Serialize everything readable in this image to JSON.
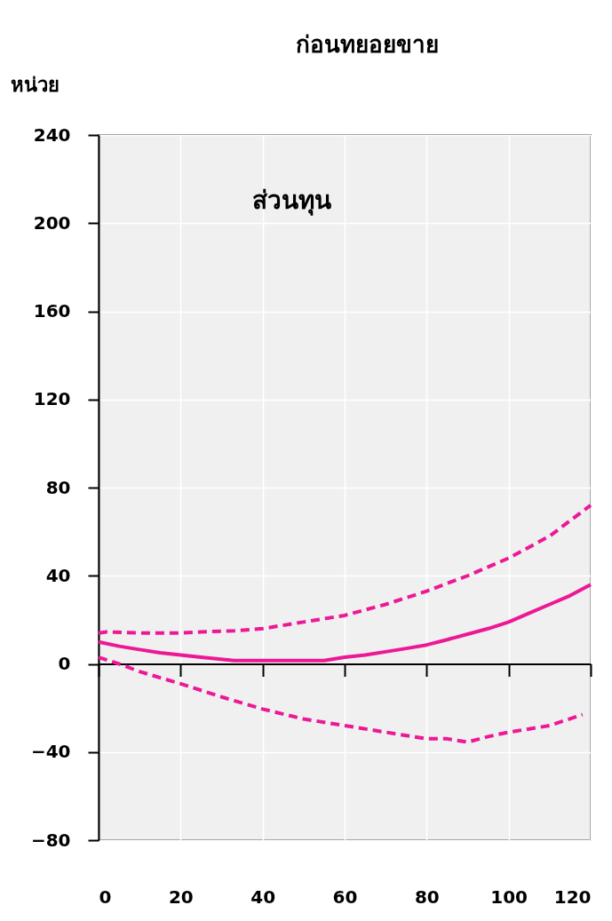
{
  "chart_data": {
    "type": "line",
    "title": "ก่อนทยอยขาย",
    "ylabel": "หน่วย",
    "annotations": [
      "ส่วนทุน"
    ],
    "xlim": [
      0,
      120
    ],
    "xticks": [
      0,
      20,
      40,
      60,
      80,
      100,
      120
    ],
    "ylim": [
      -80,
      240
    ],
    "yticks": [
      -80,
      -40,
      0,
      40,
      80,
      120,
      160,
      200,
      240
    ],
    "grid": true,
    "series": [
      {
        "color": "#ec1896",
        "line_style": "solid",
        "x": [
          0,
          5,
          10,
          15,
          20,
          25,
          33,
          40,
          50,
          55,
          60,
          65,
          70,
          75,
          80,
          85,
          90,
          95,
          100,
          105,
          110,
          115,
          120
        ],
        "values": [
          10,
          8,
          6.5,
          5,
          4,
          3,
          1.5,
          1.5,
          1.5,
          1.5,
          3,
          4,
          5.5,
          7,
          8.6,
          11,
          13.5,
          16,
          19,
          23,
          27,
          31,
          36
        ]
      },
      {
        "color": "#ec1896",
        "line_style": "dashed",
        "x": [
          0,
          2,
          10,
          20,
          25,
          33,
          40,
          50,
          60,
          70,
          80,
          90,
          100,
          110,
          120
        ],
        "values": [
          14,
          14.5,
          14,
          14,
          14.5,
          15,
          16,
          19,
          22,
          27,
          33,
          40,
          48,
          58,
          72
        ]
      },
      {
        "color": "#ec1896",
        "line_style": "dashed",
        "x": [
          0,
          5,
          10,
          20,
          30,
          40,
          50,
          60,
          70,
          80,
          85,
          90,
          95,
          100,
          110,
          118
        ],
        "values": [
          3,
          0,
          -3.5,
          -9,
          -15,
          -20.5,
          -25,
          -28,
          -31,
          -34,
          -34,
          -35.5,
          -33,
          -31,
          -28,
          -23
        ]
      }
    ]
  }
}
